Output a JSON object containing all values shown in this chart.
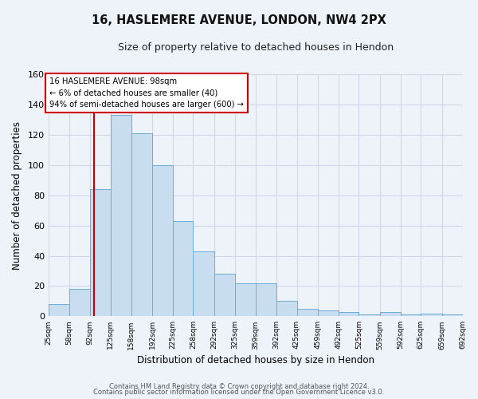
{
  "title": "16, HASLEMERE AVENUE, LONDON, NW4 2PX",
  "subtitle": "Size of property relative to detached houses in Hendon",
  "xlabel": "Distribution of detached houses by size in Hendon",
  "ylabel": "Number of detached properties",
  "bar_face_color": "#c9ddf0",
  "bar_edge_color": "#6baed6",
  "bin_edges": [
    25,
    58,
    92,
    125,
    158,
    192,
    225,
    258,
    292,
    325,
    359,
    392,
    425,
    459,
    492,
    525,
    559,
    592,
    625,
    659,
    692
  ],
  "bar_heights": [
    8,
    18,
    84,
    133,
    121,
    100,
    63,
    43,
    28,
    22,
    22,
    10,
    5,
    4,
    3,
    1,
    3,
    1,
    2,
    1
  ],
  "tick_labels": [
    "25sqm",
    "58sqm",
    "92sqm",
    "125sqm",
    "158sqm",
    "192sqm",
    "225sqm",
    "258sqm",
    "292sqm",
    "325sqm",
    "359sqm",
    "392sqm",
    "425sqm",
    "459sqm",
    "492sqm",
    "525sqm",
    "559sqm",
    "592sqm",
    "625sqm",
    "659sqm",
    "692sqm"
  ],
  "ylim": [
    0,
    160
  ],
  "yticks": [
    0,
    20,
    40,
    60,
    80,
    100,
    120,
    140,
    160
  ],
  "property_line_x": 98,
  "property_line_color": "#cc0000",
  "annotation_text": "16 HASLEMERE AVENUE: 98sqm\n← 6% of detached houses are smaller (40)\n94% of semi-detached houses are larger (600) →",
  "annotation_box_color": "#ffffff",
  "annotation_box_edge": "#cc0000",
  "footer_line1": "Contains HM Land Registry data © Crown copyright and database right 2024.",
  "footer_line2": "Contains public sector information licensed under the Open Government Licence v3.0.",
  "background_color": "#eef2f9",
  "grid_color": "#d0d8e8"
}
